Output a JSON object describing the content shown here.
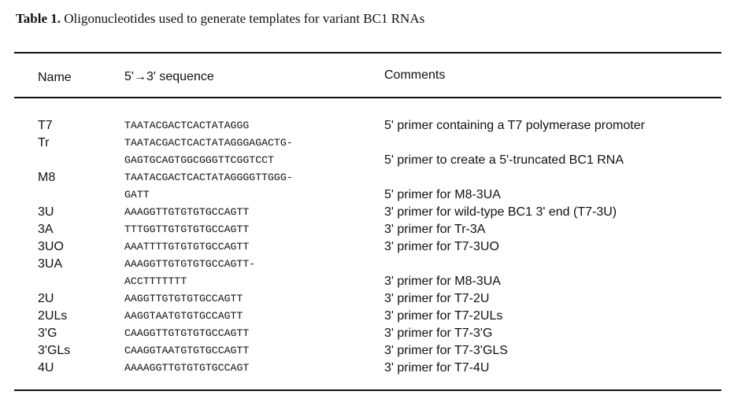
{
  "caption": {
    "label": "Table 1.",
    "text": " Oligonucleotides used to generate templates for variant BC1 RNAs"
  },
  "headers": {
    "name": "Name",
    "sequence": "5'→3' sequence",
    "comments": "Comments"
  },
  "rows": [
    {
      "name": "T7",
      "seq": [
        "TAATACGACTCACTATAGGG"
      ],
      "comment": "5' primer containing a T7 polymerase promoter"
    },
    {
      "name": "Tr",
      "seq": [
        "TAATACGACTCACTATAGGGAGACTG-",
        "GAGTGCAGTGGCGGGTTCGGTCCT"
      ],
      "comment": "5' primer to create a 5'-truncated BC1 RNA"
    },
    {
      "name": "M8",
      "seq": [
        "TAATACGACTCACTATAGGGGTTGGG-",
        "GATT"
      ],
      "comment": "5' primer for M8-3UA"
    },
    {
      "name": "3U",
      "seq": [
        "AAAGGTTGTGTGTGCCAGTT"
      ],
      "comment": "3' primer for wild-type BC1 3' end (T7-3U)"
    },
    {
      "name": "3A",
      "seq": [
        "TTTGGTTGTGTGTGCCAGTT"
      ],
      "comment": "3' primer for Tr-3A"
    },
    {
      "name": "3UO",
      "seq": [
        "AAATTTTGTGTGTGCCAGTT"
      ],
      "comment": "3' primer for T7-3UO"
    },
    {
      "name": "3UA",
      "seq": [
        "AAAGGTTGTGTGTGCCAGTT-",
        "ACCTTTTTTT"
      ],
      "comment": "3' primer for M8-3UA"
    },
    {
      "name": "2U",
      "seq": [
        "AAGGTTGTGTGTGCCAGTT"
      ],
      "comment": "3' primer for T7-2U"
    },
    {
      "name": "2ULs",
      "seq": [
        "AAGGTAATGTGTGCCAGTT"
      ],
      "comment": "3' primer for T7-2ULs"
    },
    {
      "name": "3'G",
      "seq": [
        "CAAGGTTGTGTGTGCCAGTT"
      ],
      "comment": "3' primer for T7-3'G"
    },
    {
      "name": "3'GLs",
      "seq": [
        "CAAGGTAATGTGTGCCAGTT"
      ],
      "comment": "3' primer for T7-3'GLS"
    },
    {
      "name": "4U",
      "seq": [
        "AAAAGGTTGTGTGTGCCAGT"
      ],
      "comment": "3' primer for T7-4U"
    }
  ]
}
